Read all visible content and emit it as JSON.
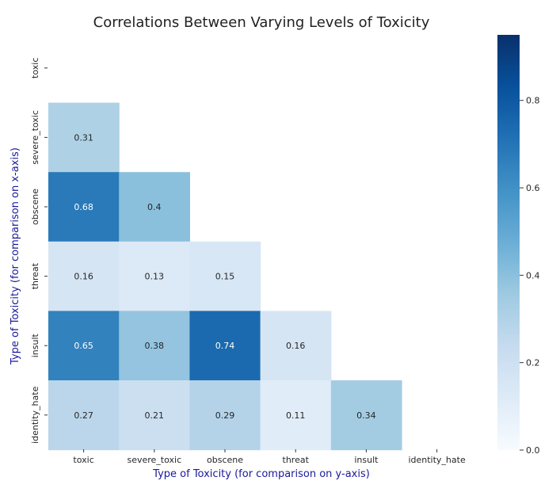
{
  "chart_data": {
    "type": "heatmap",
    "title": "Correlations Between Varying Levels of Toxicity",
    "xlabel": "Type of Toxicity (for comparison on y-axis)",
    "ylabel": "Type of Toxicity (for comparison on x-axis)",
    "x_categories": [
      "toxic",
      "severe_toxic",
      "obscene",
      "threat",
      "insult",
      "identity_hate"
    ],
    "y_categories": [
      "toxic",
      "severe_toxic",
      "obscene",
      "threat",
      "insult",
      "identity_hate"
    ],
    "mask": "upper triangle including diagonal",
    "values": [
      [
        null,
        null,
        null,
        null,
        null,
        null
      ],
      [
        0.31,
        null,
        null,
        null,
        null,
        null
      ],
      [
        0.68,
        0.4,
        null,
        null,
        null,
        null
      ],
      [
        0.16,
        0.13,
        0.15,
        null,
        null,
        null
      ],
      [
        0.65,
        0.38,
        0.74,
        0.16,
        null,
        null
      ],
      [
        0.27,
        0.21,
        0.29,
        0.11,
        0.34,
        null
      ]
    ],
    "colormap": "Blues",
    "vmin": 0.0,
    "vmax": 0.95,
    "colorbar_ticks": [
      0.0,
      0.2,
      0.4,
      0.6,
      0.8
    ],
    "colorbar_tick_labels": [
      "0.0",
      "0.2",
      "0.4",
      "0.6",
      "0.8"
    ]
  }
}
